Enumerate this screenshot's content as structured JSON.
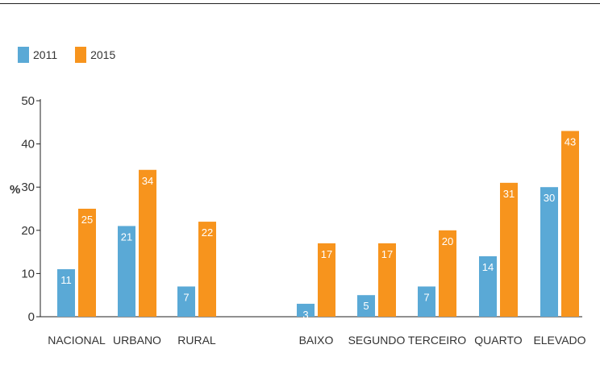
{
  "colors": {
    "s2011": "#5aa9d6",
    "s2015": "#f7941d",
    "axis": "#222222",
    "text": "#333333"
  },
  "chart_data": {
    "type": "bar",
    "title": "",
    "ylabel": "%",
    "xlabel": "",
    "ylim": [
      0,
      50
    ],
    "yticks": [
      0,
      10,
      20,
      30,
      40,
      50
    ],
    "legend_placement": "top-left",
    "grid": false,
    "categories": [
      "NACIONAL",
      "URBANO",
      "RURAL",
      "BAIXO",
      "SEGUNDO",
      "TERCEIRO",
      "QUARTO",
      "ELEVADO"
    ],
    "groups": [
      [
        "NACIONAL",
        "URBANO",
        "RURAL"
      ],
      [
        "BAIXO",
        "SEGUNDO",
        "TERCEIRO",
        "QUARTO",
        "ELEVADO"
      ]
    ],
    "series": [
      {
        "name": "2011",
        "values": [
          11,
          21,
          7,
          3,
          5,
          7,
          14,
          30
        ]
      },
      {
        "name": "2015",
        "values": [
          25,
          34,
          22,
          17,
          17,
          20,
          31,
          43
        ]
      }
    ]
  }
}
